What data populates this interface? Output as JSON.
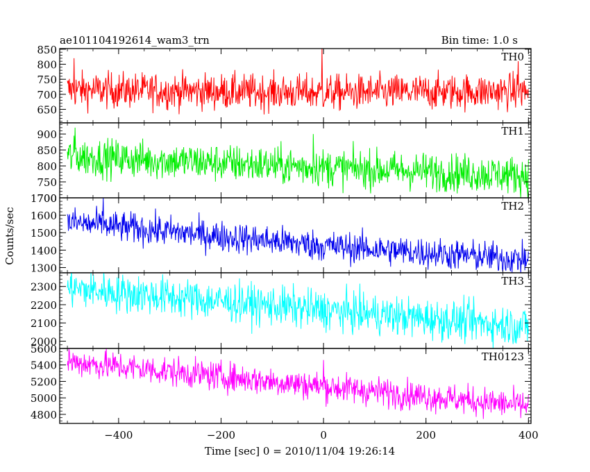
{
  "header": {
    "title": "ae101104192614_wam3_trn",
    "bin_time": "Bin time: 1.0 s"
  },
  "chart_data": {
    "type": "line",
    "xlabel": "Time [sec] 0 = 2010/11/04 19:26:14",
    "ylabel": "Counts/sec",
    "xlim": [
      -515,
      405
    ],
    "x_ticks": [
      -400,
      -200,
      0,
      200,
      400
    ],
    "x_range": [
      -500,
      400
    ],
    "x_step": 1,
    "grid": false,
    "panels": [
      {
        "name": "TH0",
        "color": "#ff0000",
        "ylim": [
          605,
          852
        ],
        "y_ticks": [
          650,
          700,
          750,
          800,
          850
        ],
        "trend": [
          [
            -500,
            715
          ],
          [
            0,
            705
          ],
          [
            400,
            710
          ]
        ],
        "noise": 30,
        "spikes": [
          [
            -487,
            820
          ],
          [
            -3,
            852
          ],
          [
            380,
            810
          ]
        ]
      },
      {
        "name": "TH1",
        "color": "#00ee00",
        "ylim": [
          700,
          935
        ],
        "y_ticks": [
          700,
          750,
          800,
          850,
          900
        ],
        "trend": [
          [
            -500,
            830
          ],
          [
            0,
            795
          ],
          [
            400,
            770
          ]
        ],
        "noise": 30,
        "spikes": [
          [
            -485,
            920
          ],
          [
            -20,
            900
          ]
        ]
      },
      {
        "name": "TH2",
        "color": "#0000ee",
        "ylim": [
          1270,
          1700
        ],
        "y_ticks": [
          1300,
          1400,
          1500,
          1600,
          1700
        ],
        "trend": [
          [
            -500,
            1560
          ],
          [
            0,
            1425
          ],
          [
            400,
            1345
          ]
        ],
        "noise": 45,
        "spikes": [
          [
            -430,
            1700
          ]
        ]
      },
      {
        "name": "TH3",
        "color": "#00ffff",
        "ylim": [
          1960,
          2375
        ],
        "y_ticks": [
          2000,
          2100,
          2200,
          2300
        ],
        "trend": [
          [
            -500,
            2290
          ],
          [
            0,
            2170
          ],
          [
            400,
            2080
          ]
        ],
        "noise": 55,
        "spikes": [
          [
            -486,
            2340
          ]
        ]
      },
      {
        "name": "TH0123",
        "color": "#ff00ff",
        "ylim": [
          4690,
          5600
        ],
        "y_ticks": [
          4800,
          5000,
          5200,
          5400,
          5600
        ],
        "trend": [
          [
            -500,
            5440
          ],
          [
            0,
            5140
          ],
          [
            400,
            4900
          ]
        ],
        "noise": 90,
        "spikes": [
          [
            -497,
            5600
          ],
          [
            0,
            5460
          ]
        ]
      }
    ]
  }
}
